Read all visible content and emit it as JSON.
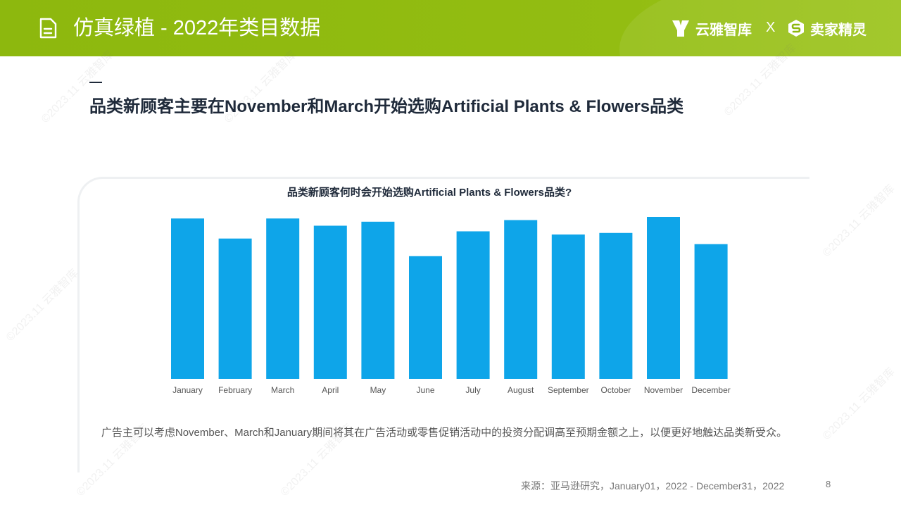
{
  "header": {
    "title": "仿真绿植 - 2022年类目数据",
    "brand_left": "云雅智库",
    "brand_separator": "X",
    "brand_right": "卖家精灵"
  },
  "headline": "品类新顾客主要在November和March开始选购Artificial Plants & Flowers品类",
  "watermark_text": "©2023.11 云雅智库",
  "chart_data": {
    "type": "bar",
    "title": "品类新顾客何时会开始选购Artificial Plants & Flowers品类?",
    "categories": [
      "January",
      "February",
      "March",
      "April",
      "May",
      "June",
      "July",
      "August",
      "September",
      "October",
      "November",
      "December"
    ],
    "values": [
      100,
      87.5,
      100,
      95.5,
      98,
      76.5,
      92,
      99,
      90,
      91,
      101,
      84
    ],
    "ylim": [
      0,
      101
    ],
    "grid": false,
    "legend": "none",
    "bar_color": "#0ea5e9"
  },
  "note": "广告主可以考虑November、March和January期间将其在广告活动或零售促销活动中的投资分配调高至预期金额之上，以便更好地触达品类新受众。",
  "source": "来源：亚马逊研究，January01，2022 - December31，2022",
  "page_number": "8"
}
